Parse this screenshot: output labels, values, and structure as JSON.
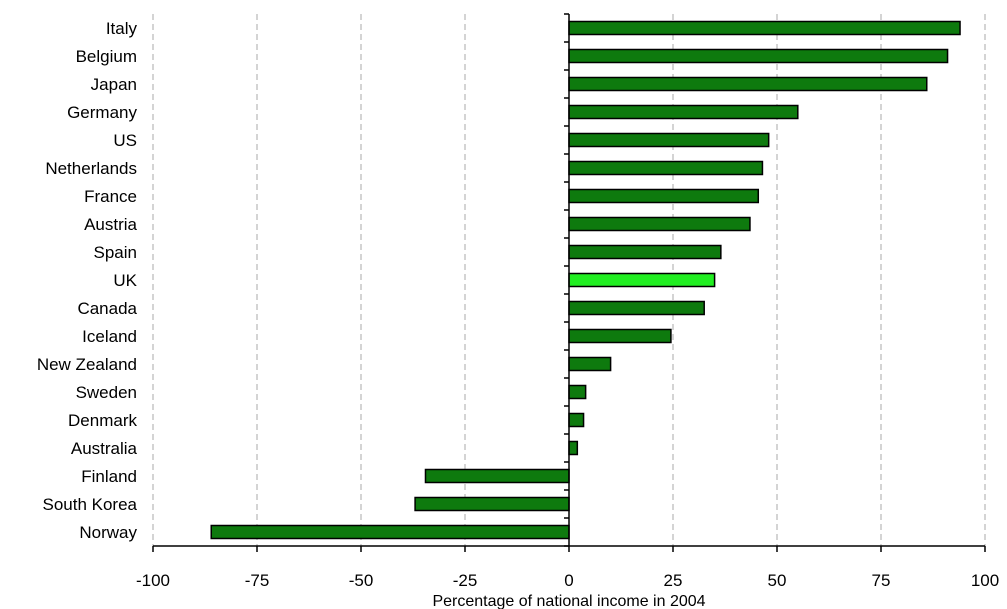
{
  "chart_data": {
    "type": "bar",
    "orientation": "horizontal",
    "title": "",
    "xlabel": "Percentage of national income in 2004",
    "ylabel": "",
    "categories": [
      "Italy",
      "Belgium",
      "Japan",
      "Germany",
      "US",
      "Netherlands",
      "France",
      "Austria",
      "Spain",
      "UK",
      "Canada",
      "Iceland",
      "New Zealand",
      "Sweden",
      "Denmark",
      "Australia",
      "Finland",
      "South Korea",
      "Norway"
    ],
    "values": [
      94,
      91,
      86,
      55,
      48,
      46.5,
      45.5,
      43.5,
      36.5,
      35,
      32.5,
      24.5,
      10,
      4,
      3.5,
      2,
      -34.5,
      -37,
      -86
    ],
    "xlim": [
      -100,
      100
    ],
    "xticks": [
      "-100",
      "-75",
      "-50",
      "-25",
      "0",
      "25",
      "50",
      "75",
      "100"
    ],
    "grid": "vertical dashed",
    "highlight": "UK",
    "colors": {
      "bar": "#0e7a0e",
      "highlight": "#22ee22",
      "outline": "#000000",
      "grid": "#aaaaaa"
    }
  }
}
